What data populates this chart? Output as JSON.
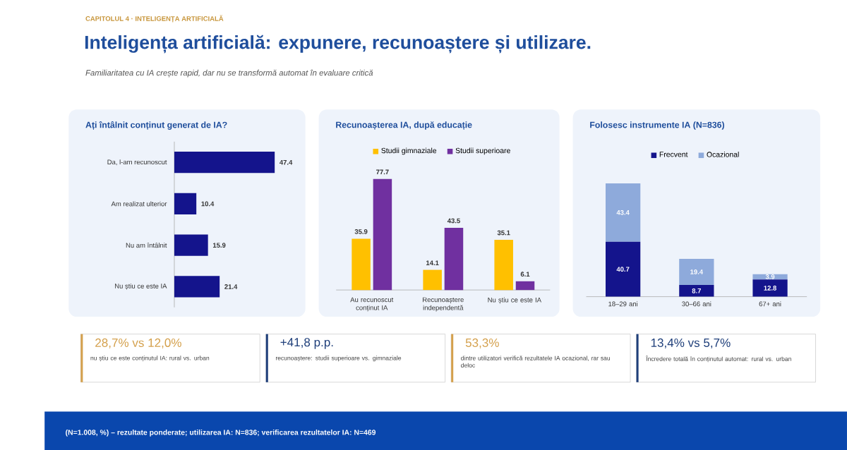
{
  "chart_data": [
    {
      "type": "other",
      "title": "Inteligența artificială: expunere, recunoaștere și utilizare.",
      "subtitle": "Familiaritatea cu IA crește rapid, dar nu se transformă automat în evaluare critică",
      "annotations": [
        "CAPITOLUL 4 · INTELIGENȚA ARTIFICIALĂ"
      ]
    },
    {
      "type": "bar",
      "orientation": "horizontal",
      "title": "Ați întâlnit conținut generat de IA?",
      "categories": [
        "Da, l-am recunoscut",
        "Am realizat ulterior",
        "Nu am întâlnit",
        "Nu știu ce este IA"
      ],
      "values": [
        47.4,
        10.4,
        15.9,
        21.4
      ],
      "color": "#14148c",
      "xlim": [
        0,
        60
      ],
      "data_labels": true,
      "tick_labels": "y"
    },
    {
      "type": "bar",
      "title": "Recunoașterea IA, după educație",
      "categories": [
        "Au recunoscut conținut IA",
        "Recunoaștere independentă",
        "Nu știu ce este IA"
      ],
      "series": [
        {
          "name": "Studii gimnaziale",
          "color": "#ffc000",
          "values": [
            35.9,
            14.1,
            35.1
          ]
        },
        {
          "name": "Studii superioare",
          "color": "#7030a0",
          "values": [
            77.7,
            43.5,
            6.1
          ]
        }
      ],
      "data_labels": true,
      "legend": "top",
      "tick_labels": "x"
    },
    {
      "type": "bar",
      "stacked": true,
      "title": "Folosesc instrumente IA (N=836)",
      "categories": [
        "18–29 ani",
        "30–66 ani",
        "67+ ani"
      ],
      "series": [
        {
          "name": "Frecvent",
          "color": "#14148c",
          "values": [
            40.7,
            8.7,
            12.8
          ]
        },
        {
          "name": "Ocazional",
          "color": "#8eaadb",
          "values": [
            43.4,
            19.4,
            3.9
          ]
        }
      ],
      "data_labels": true,
      "legend": "top",
      "tick_labels": "x"
    },
    {
      "type": "other",
      "annotations": [
        "28,7% vs 12,0%",
        "nu știu ce este conținutul IA: rural vs. urban",
        "+41,8 p.p.",
        "recunoaștere: studii superioare vs. gimnaziale",
        "53,3%",
        "dintre utilizatori verifică rezultatele IA ocazional, rar sau deloc",
        "13,4% vs 5,7%",
        "Încredere totală în conținutul automat: rural vs. urban",
        "(N=1.008, %) – rezultate ponderate; utilizarea IA: N=836; verificarea rezultatelor IA: N=469"
      ]
    }
  ]
}
